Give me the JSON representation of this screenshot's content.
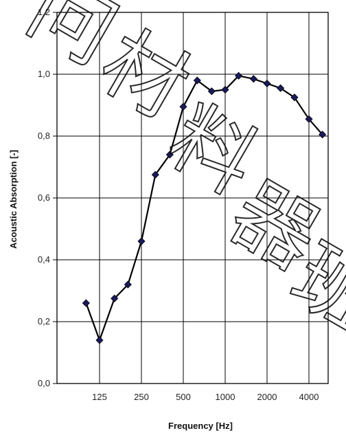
{
  "chart_data": {
    "type": "line",
    "xlabel": "Frequency [Hz]",
    "ylabel": "Acoustic Absorption [-]",
    "ylim": [
      0.0,
      1.2
    ],
    "y_ticks": [
      "0,0",
      "0,2",
      "0,4",
      "0,6",
      "0,8",
      "1,0",
      "1,2"
    ],
    "x_ticks": [
      "125",
      "250",
      "500",
      "1000",
      "2000",
      "4000"
    ],
    "x_scale": "log (third-octave bands)",
    "grid": true,
    "legend": "none",
    "series": [
      {
        "x": [
          100,
          125,
          160,
          200,
          250,
          315,
          400,
          500,
          630,
          800,
          1000,
          1250,
          1600,
          2000,
          2500,
          3150,
          4000,
          5000
        ],
        "values": [
          0.26,
          0.14,
          0.275,
          0.32,
          0.46,
          0.675,
          0.74,
          0.895,
          0.98,
          0.945,
          0.95,
          0.995,
          0.985,
          0.97,
          0.955,
          0.925,
          0.855,
          0.805
        ]
      }
    ],
    "colors": {
      "line": "#000000",
      "marker": "#1a1a5e",
      "grid": "#000000"
    },
    "watermark": "问材料器班"
  }
}
